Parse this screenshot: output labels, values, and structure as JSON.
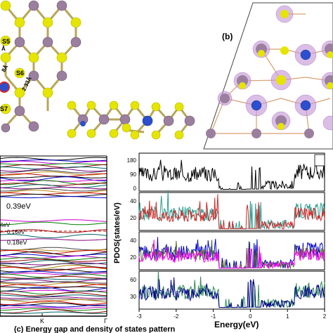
{
  "panel_a": {
    "site_labels": [
      "S5",
      "S6",
      "S7"
    ],
    "bond_labels": [
      "2.33Å",
      "8Å",
      "Å"
    ]
  },
  "panel_b": {
    "label": "(b)"
  },
  "panel_c_bands": {
    "gap_labels": [
      "0.39eV",
      "4eV",
      "0.16eV",
      "0.18eV"
    ],
    "kpoint_labels": [
      "K",
      "Γ"
    ],
    "caption": "(c) Energy gap and density of states pattern"
  },
  "pdos": {
    "ylabel": "PDOS(states/eV)",
    "xlabel": "Energy(eV)",
    "xlim": [
      -3,
      2
    ],
    "xticks": [
      "-3",
      "-2",
      "-1",
      "0",
      "1",
      "2"
    ],
    "panels": [
      {
        "yticks": [
          "180",
          "90",
          "0"
        ],
        "color": "#000000"
      },
      {
        "yticks": [
          "40",
          "20"
        ],
        "colors": [
          "#d62728",
          "#2a9d8f"
        ]
      },
      {
        "yticks": [
          "40",
          "20"
        ],
        "colors": [
          "#ff00ff",
          "#556b2f",
          "#0000cc"
        ]
      },
      {
        "yticks": [
          "60",
          "30"
        ],
        "colors": [
          "#00008b",
          "#2e8b57"
        ]
      }
    ]
  },
  "colors": {
    "mo": "#9b7f9e",
    "s": "#e5e500",
    "dopant": "#2b4fcf",
    "isosurface": "#c89bd8"
  }
}
